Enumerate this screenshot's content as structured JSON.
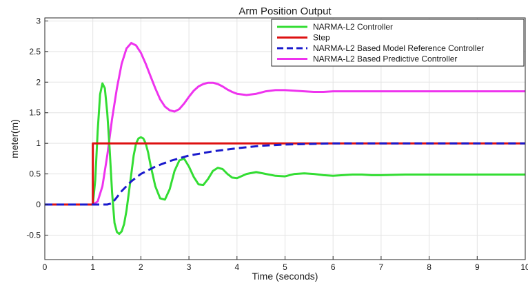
{
  "chart_data": {
    "type": "line",
    "title": "Arm Position Output",
    "xlabel": "Time (seconds)",
    "ylabel": "meter(m)",
    "xlim": [
      0,
      10
    ],
    "ylim": [
      -0.9,
      3.05
    ],
    "xticks": [
      "0",
      "1",
      "2",
      "3",
      "4",
      "5",
      "6",
      "7",
      "8",
      "9",
      "10"
    ],
    "yticks": [
      "-0.5",
      "0",
      "0.5",
      "1",
      "1.5",
      "2",
      "2.5",
      "3"
    ],
    "grid": true,
    "legend_position": "top-right",
    "colors": {
      "narma": "#33dd33",
      "step": "#dd1111",
      "mrc": "#1a1acc",
      "predictive": "#ee33ee",
      "grid": "#e3e3e3",
      "axes": "#262626"
    },
    "series": [
      {
        "name": "NARMA-L2 Controller",
        "style": "solid",
        "x": [
          0,
          1,
          1.05,
          1.1,
          1.15,
          1.2,
          1.25,
          1.3,
          1.35,
          1.4,
          1.45,
          1.5,
          1.55,
          1.6,
          1.65,
          1.7,
          1.75,
          1.8,
          1.85,
          1.9,
          1.95,
          2.0,
          2.05,
          2.1,
          2.15,
          2.2,
          2.3,
          2.4,
          2.5,
          2.6,
          2.7,
          2.8,
          2.9,
          3.0,
          3.1,
          3.2,
          3.3,
          3.4,
          3.5,
          3.6,
          3.7,
          3.8,
          3.9,
          4.0,
          4.2,
          4.4,
          4.6,
          4.8,
          5.0,
          5.2,
          5.4,
          5.6,
          5.8,
          6.0,
          6.2,
          6.4,
          6.6,
          6.8,
          7.0,
          7.5,
          8.0,
          8.5,
          9.0,
          9.5,
          10
        ],
        "values": [
          0,
          0,
          0.4,
          1.2,
          1.8,
          1.98,
          1.9,
          1.5,
          0.9,
          0.2,
          -0.3,
          -0.45,
          -0.48,
          -0.44,
          -0.32,
          -0.1,
          0.2,
          0.5,
          0.8,
          1.0,
          1.08,
          1.1,
          1.08,
          1.0,
          0.85,
          0.65,
          0.3,
          0.1,
          0.08,
          0.25,
          0.55,
          0.72,
          0.75,
          0.62,
          0.45,
          0.33,
          0.32,
          0.42,
          0.55,
          0.6,
          0.58,
          0.5,
          0.44,
          0.43,
          0.5,
          0.53,
          0.5,
          0.47,
          0.46,
          0.5,
          0.51,
          0.5,
          0.48,
          0.47,
          0.48,
          0.49,
          0.49,
          0.48,
          0.48,
          0.49,
          0.49,
          0.49,
          0.49,
          0.49,
          0.49
        ]
      },
      {
        "name": "Step",
        "style": "solid",
        "x": [
          0,
          1,
          1,
          10
        ],
        "values": [
          0,
          0,
          1,
          1
        ]
      },
      {
        "name": "NARMA-L2 Based Model Reference Controller",
        "style": "dashed",
        "x": [
          0,
          1,
          1.2,
          1.3,
          1.4,
          1.5,
          1.6,
          1.8,
          2.0,
          2.3,
          2.6,
          3.0,
          3.5,
          4.0,
          4.5,
          5.0,
          5.5,
          6.0,
          7.0,
          8.0,
          9.0,
          10
        ],
        "values": [
          0,
          0,
          0,
          0,
          0.02,
          0.12,
          0.22,
          0.38,
          0.5,
          0.62,
          0.71,
          0.8,
          0.87,
          0.92,
          0.96,
          0.98,
          0.99,
          1.0,
          1.0,
          1.0,
          1.0,
          1.0
        ]
      },
      {
        "name": "NARMA-L2 Based Predictive Controller",
        "style": "solid",
        "x": [
          0,
          1,
          1.1,
          1.2,
          1.3,
          1.4,
          1.5,
          1.6,
          1.7,
          1.8,
          1.9,
          2.0,
          2.1,
          2.2,
          2.3,
          2.4,
          2.5,
          2.6,
          2.7,
          2.8,
          2.9,
          3.0,
          3.1,
          3.2,
          3.3,
          3.4,
          3.5,
          3.6,
          3.7,
          3.8,
          3.9,
          4.0,
          4.2,
          4.4,
          4.6,
          4.8,
          5.0,
          5.2,
          5.4,
          5.6,
          5.8,
          6.0,
          6.5,
          7.0,
          7.5,
          8.0,
          8.5,
          9.0,
          9.5,
          10
        ],
        "values": [
          0,
          0,
          0.05,
          0.3,
          0.8,
          1.4,
          1.9,
          2.3,
          2.55,
          2.64,
          2.6,
          2.48,
          2.3,
          2.1,
          1.9,
          1.72,
          1.6,
          1.54,
          1.52,
          1.56,
          1.65,
          1.76,
          1.86,
          1.93,
          1.97,
          1.99,
          1.99,
          1.97,
          1.93,
          1.88,
          1.84,
          1.81,
          1.79,
          1.81,
          1.85,
          1.87,
          1.87,
          1.86,
          1.85,
          1.84,
          1.84,
          1.85,
          1.85,
          1.85,
          1.85,
          1.85,
          1.85,
          1.85,
          1.85,
          1.85
        ]
      }
    ]
  }
}
